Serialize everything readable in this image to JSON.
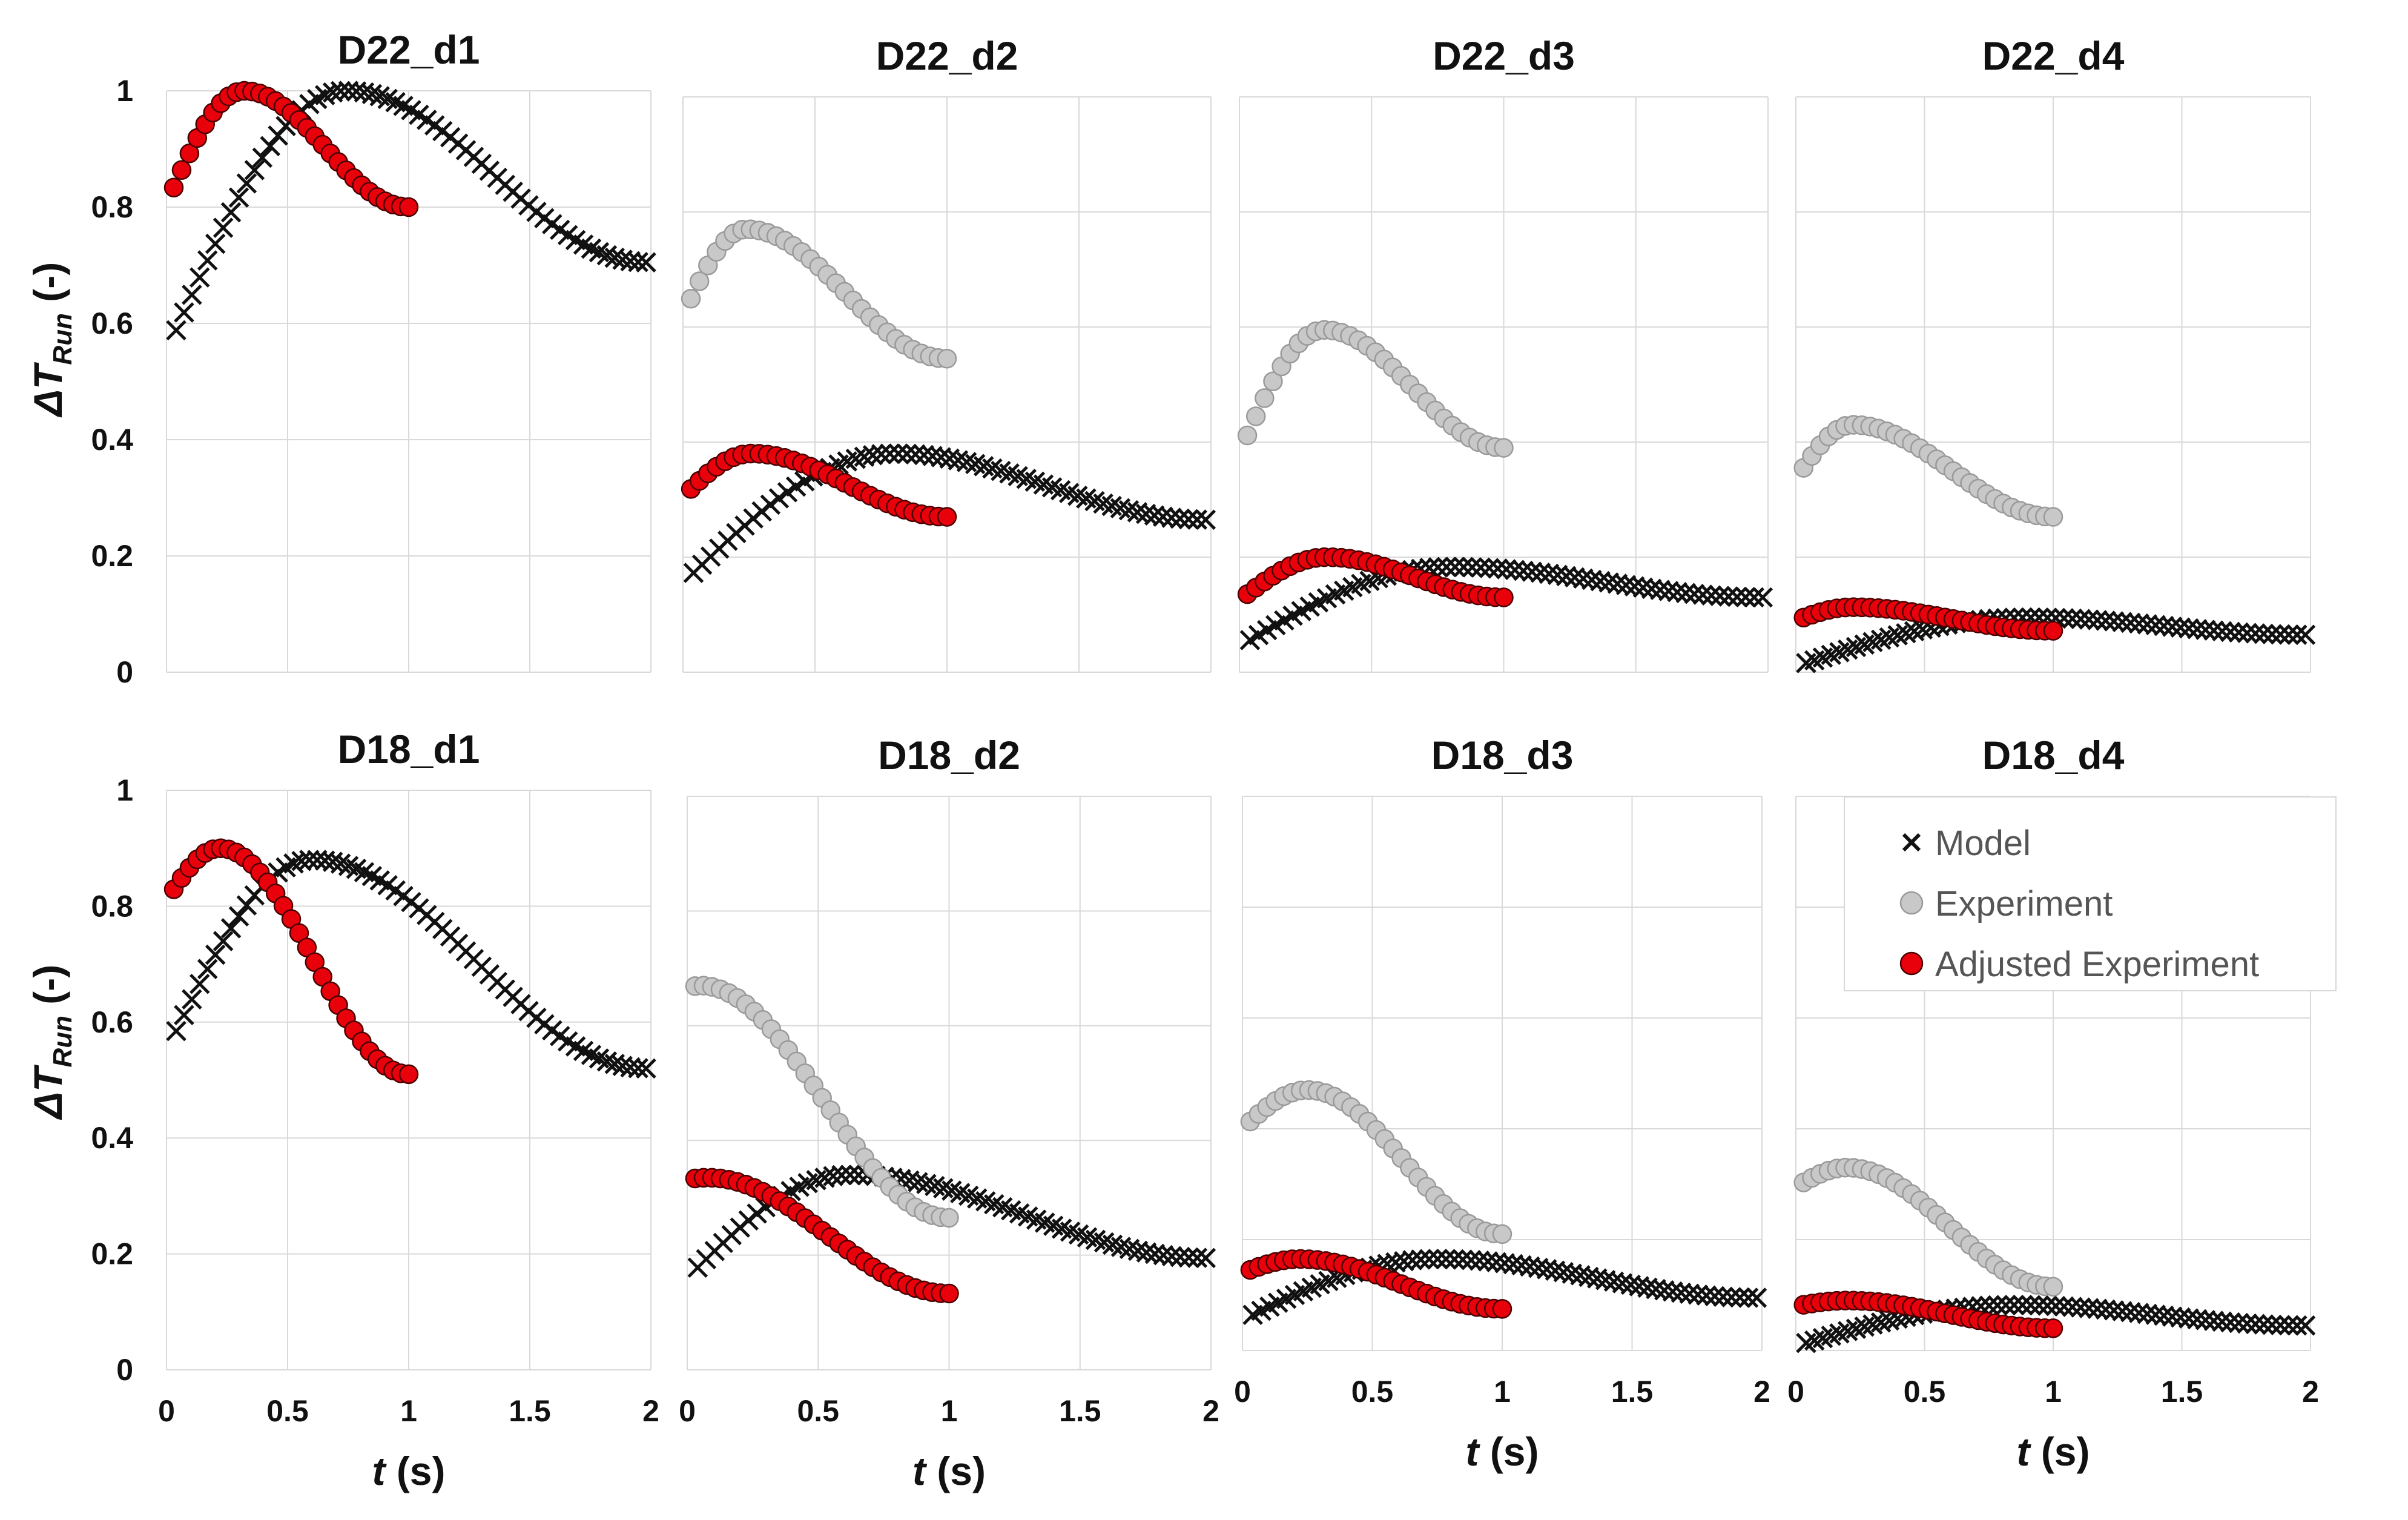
{
  "chart_data": {
    "type": "scatter",
    "ylabel": {
      "symbol": "ΔT",
      "subscript": "Run",
      "unit": "(-)"
    },
    "xlabel": {
      "symbol": "t",
      "unit": "(s)"
    },
    "xlim": [
      0,
      2
    ],
    "ylim": [
      0,
      1
    ],
    "x_ticks": [
      "0",
      "0.5",
      "1",
      "1.5",
      "2"
    ],
    "y_ticks": [
      "0",
      "0.2",
      "0.4",
      "0.6",
      "0.8",
      "1"
    ],
    "legend": {
      "position": "top-right of D18_d4",
      "entries": [
        {
          "key": "model",
          "label": "Model"
        },
        {
          "key": "experiment",
          "label": "Experiment"
        },
        {
          "key": "adjusted",
          "label": "Adjusted Experiment"
        }
      ]
    },
    "series_style": {
      "model": {
        "marker": "x",
        "color": "#111111"
      },
      "experiment": {
        "marker": "circle",
        "color": "#c8c8c8",
        "edge": "#9a9a9a"
      },
      "adjusted": {
        "marker": "circle",
        "color": "#e8000b",
        "edge": "#4a0000"
      }
    },
    "panels": [
      {
        "title": "D22_d1",
        "model": {
          "y0": 0.55,
          "peak_t": 0.74,
          "peak": 1.0,
          "end": 0.705
        },
        "experiment": null,
        "adjusted": {
          "y0": 0.805,
          "peak_t": 0.32,
          "peak": 1.0,
          "end": 0.8
        }
      },
      {
        "title": "D22_d2",
        "model": {
          "y0": 0.155,
          "peak_t": 0.8,
          "peak": 0.38,
          "end": 0.265
        },
        "experiment": {
          "y0": 0.62,
          "peak_t": 0.24,
          "peak": 0.77,
          "end": 0.545
        },
        "adjusted": {
          "y0": 0.305,
          "peak_t": 0.26,
          "peak": 0.38,
          "end": 0.27
        }
      },
      {
        "title": "D22_d3",
        "model": {
          "y0": 0.045,
          "peak_t": 0.8,
          "peak": 0.183,
          "end": 0.13
        },
        "experiment": {
          "y0": 0.38,
          "peak_t": 0.32,
          "peak": 0.595,
          "end": 0.39
        },
        "adjusted": {
          "y0": 0.125,
          "peak_t": 0.33,
          "peak": 0.2,
          "end": 0.13
        }
      },
      {
        "title": "D22_d4",
        "model": {
          "y0": 0.01,
          "peak_t": 0.9,
          "peak": 0.095,
          "end": 0.065
        },
        "experiment": {
          "y0": 0.335,
          "peak_t": 0.22,
          "peak": 0.43,
          "end": 0.27
        },
        "adjusted": {
          "y0": 0.09,
          "peak_t": 0.22,
          "peak": 0.113,
          "end": 0.072
        }
      },
      {
        "title": "D18_d1",
        "model": {
          "y0": 0.55,
          "peak_t": 0.6,
          "peak": 0.88,
          "end": 0.52
        },
        "experiment": null,
        "adjusted": {
          "y0": 0.81,
          "peak_t": 0.22,
          "peak": 0.9,
          "end": 0.51
        }
      },
      {
        "title": "D18_d2",
        "model": {
          "y0": 0.16,
          "peak_t": 0.62,
          "peak": 0.34,
          "end": 0.195
        },
        "experiment": {
          "y0": 0.665,
          "peak_t": 0.05,
          "peak": 0.67,
          "end": 0.265
        },
        "adjusted": {
          "y0": 0.332,
          "peak_t": 0.08,
          "peak": 0.335,
          "end": 0.133
        }
      },
      {
        "title": "D18_d3",
        "model": {
          "y0": 0.055,
          "peak_t": 0.75,
          "peak": 0.165,
          "end": 0.095
        },
        "experiment": {
          "y0": 0.4,
          "peak_t": 0.25,
          "peak": 0.47,
          "end": 0.21
        },
        "adjusted": {
          "y0": 0.14,
          "peak_t": 0.22,
          "peak": 0.165,
          "end": 0.075
        }
      },
      {
        "title": "D18_d4",
        "model": {
          "y0": 0.008,
          "peak_t": 0.85,
          "peak": 0.082,
          "end": 0.045
        },
        "experiment": {
          "y0": 0.295,
          "peak_t": 0.2,
          "peak": 0.33,
          "end": 0.115
        },
        "adjusted": {
          "y0": 0.08,
          "peak_t": 0.2,
          "peak": 0.09,
          "end": 0.04
        }
      }
    ]
  }
}
